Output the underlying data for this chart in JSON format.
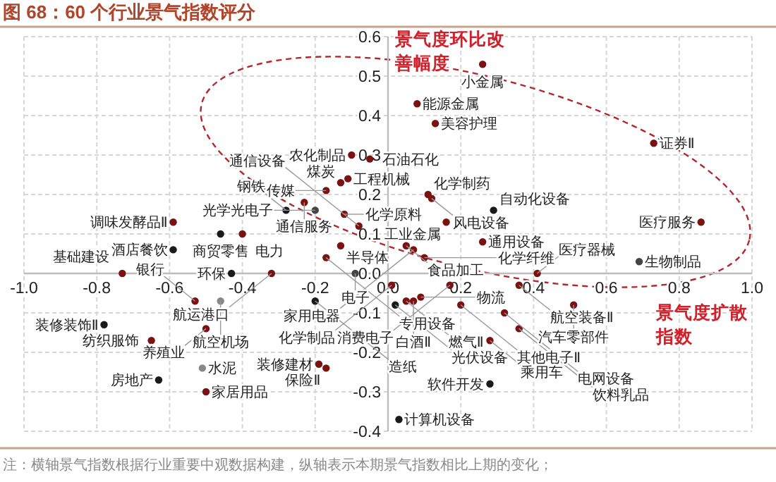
{
  "chart_data": {
    "type": "scatter",
    "title": "图 68：60 个行业景气指数评分",
    "xlabel": "景气度扩散指数",
    "ylabel": "景气度环比改善幅度",
    "xlim": [
      -1.0,
      1.0
    ],
    "ylim": [
      -0.4,
      0.6
    ],
    "xticks": [
      {
        "value": -1.0,
        "label": "-1.0"
      },
      {
        "value": -0.8,
        "label": "-0.8"
      },
      {
        "value": -0.6,
        "label": "-0.6"
      },
      {
        "value": -0.4,
        "label": "-0.4"
      },
      {
        "value": -0.2,
        "label": "-0.2"
      },
      {
        "value": 0,
        "label": "0.0"
      },
      {
        "value": 0.2,
        "label": "0.2"
      },
      {
        "value": 0.4,
        "label": "0.4"
      },
      {
        "value": 0.6,
        "label": "0.6"
      },
      {
        "value": 0.8,
        "label": "0.8"
      },
      {
        "value": 1.0,
        "label": "1.0"
      }
    ],
    "yticks": [
      {
        "value": -0.4,
        "label": "-0.4"
      },
      {
        "value": -0.3,
        "label": "-0.3"
      },
      {
        "value": -0.2,
        "label": "-0.2"
      },
      {
        "value": -0.1,
        "label": "-0.1"
      },
      {
        "value": 0,
        "label": "0.0"
      },
      {
        "value": 0.1,
        "label": "0.1"
      },
      {
        "value": 0.2,
        "label": "0.2"
      },
      {
        "value": 0.3,
        "label": "0.3"
      },
      {
        "value": 0.4,
        "label": "0.4"
      },
      {
        "value": 0.5,
        "label": "0.5"
      },
      {
        "value": 0.6,
        "label": "0.6"
      }
    ],
    "grid": true,
    "marker": "circle",
    "annotations": [
      "注：横轴景气指数根据行业重要中观数据构建，纵轴表示本期景气指数相比上期的变化；"
    ],
    "series": [
      {
        "name": "小金属",
        "color": "#7a1212",
        "x": [
          0.26
        ],
        "values": [
          0.53
        ]
      },
      {
        "name": "能源金属",
        "color": "#7a1212",
        "x": [
          0.08
        ],
        "values": [
          0.43
        ]
      },
      {
        "name": "美容护理",
        "color": "#7a1212",
        "x": [
          0.13
        ],
        "values": [
          0.38
        ]
      },
      {
        "name": "证券Ⅱ",
        "color": "#7a1212",
        "x": [
          0.73
        ],
        "values": [
          0.33
        ]
      },
      {
        "name": "农化制品",
        "color": "#7a1212",
        "x": [
          -0.1
        ],
        "values": [
          0.3
        ]
      },
      {
        "name": "石油石化",
        "color": "#7a1212",
        "x": [
          -0.05
        ],
        "values": [
          0.29
        ]
      },
      {
        "name": "工程机械",
        "color": "#7a1212",
        "x": [
          -0.11
        ],
        "values": [
          0.24
        ]
      },
      {
        "name": "煤炭",
        "color": "#7a1212",
        "x": [
          -0.13
        ],
        "values": [
          0.23
        ]
      },
      {
        "name": "传媒",
        "color": "#7a1212",
        "x": [
          -0.17
        ],
        "values": [
          0.21
        ]
      },
      {
        "name": "化学制药",
        "color": "#7a1212",
        "x": [
          0.11
        ],
        "values": [
          0.2
        ]
      },
      {
        "name": "风电设备",
        "color": "#7a1212",
        "x": [
          0.12
        ],
        "values": [
          0.19
        ]
      },
      {
        "name": "通信服务",
        "color": "#7a1212",
        "x": [
          -0.23
        ],
        "values": [
          0.18
        ]
      },
      {
        "name": "光学光电子",
        "color": "#444444",
        "x": [
          -0.2
        ],
        "values": [
          0.16
        ]
      },
      {
        "name": "钢铁",
        "color": "#1a1a1a",
        "x": [
          -0.28
        ],
        "values": [
          0.16
        ]
      },
      {
        "name": "化学原料",
        "color": "#7a1212",
        "x": [
          -0.12
        ],
        "values": [
          0.15
        ]
      },
      {
        "name": "医疗服务",
        "color": "#7a1212",
        "x": [
          0.86
        ],
        "values": [
          0.13
        ]
      },
      {
        "name": "工业金属",
        "color": "#7a1212",
        "x": [
          0.16
        ],
        "values": [
          0.13
        ]
      },
      {
        "name": "调味发酵品Ⅱ",
        "color": "#7a1212",
        "x": [
          -0.59
        ],
        "values": [
          0.13
        ]
      },
      {
        "name": "通信设备",
        "color": "#7a1212",
        "x": [
          -0.08
        ],
        "values": [
          0.12
        ]
      },
      {
        "name": "商贸零售",
        "color": "#1a1a1a",
        "x": [
          -0.46
        ],
        "values": [
          0.1
        ]
      },
      {
        "name": "电力",
        "color": "#7a1212",
        "x": [
          -0.4
        ],
        "values": [
          0.1
        ]
      },
      {
        "name": "自动化设备",
        "color": "#1a1a1a",
        "x": [
          0.29
        ],
        "values": [
          0.16
        ]
      },
      {
        "name": "通用设备",
        "color": "#7a1212",
        "x": [
          0.26
        ],
        "values": [
          0.08
        ]
      },
      {
        "name": "食品加工",
        "color": "#7a1212",
        "x": [
          0.05
        ],
        "values": [
          0.07
        ]
      },
      {
        "name": "半导体",
        "color": "#7a1212",
        "x": [
          -0.13
        ],
        "values": [
          0.07
        ]
      },
      {
        "name": "家用电器",
        "color": "#7a1212",
        "x": [
          0.07
        ],
        "values": [
          0.06
        ]
      },
      {
        "name": "化学纤维",
        "color": "#7a1212",
        "x": [
          0.1
        ],
        "values": [
          0.04
        ]
      },
      {
        "name": "酒店餐饮",
        "color": "#1a1a1a",
        "x": [
          -0.59
        ],
        "values": [
          0.06
        ]
      },
      {
        "name": "专用设备",
        "color": "#7a1212",
        "x": [
          -0.17
        ],
        "values": [
          0.04
        ]
      },
      {
        "name": "生物制品",
        "color": "#444444",
        "x": [
          0.69
        ],
        "values": [
          0.03
        ]
      },
      {
        "name": "环保",
        "color": "#1a1a1a",
        "x": [
          -0.43
        ],
        "values": [
          0.0
        ]
      },
      {
        "name": "航运港口",
        "color": "#7a1212",
        "x": [
          -0.32
        ],
        "values": [
          0.0
        ]
      },
      {
        "name": "基础建设",
        "color": "#7a1212",
        "x": [
          -0.73
        ],
        "values": [
          0.0
        ]
      },
      {
        "name": "医疗器械",
        "color": "#7a1212",
        "x": [
          0.41
        ],
        "values": [
          0.0
        ]
      },
      {
        "name": "电子",
        "color": "#444444",
        "x": [
          -0.09
        ],
        "values": [
          0.0
        ]
      },
      {
        "name": "消费电子",
        "color": "#7a1212",
        "x": [
          0.17
        ],
        "values": [
          -0.03
        ]
      },
      {
        "name": "化学制品",
        "color": "#7a1212",
        "x": [
          0.01
        ],
        "values": [
          -0.03
        ]
      },
      {
        "name": "航空装备Ⅱ",
        "color": "#7a1212",
        "x": [
          0.36
        ],
        "values": [
          -0.03
        ]
      },
      {
        "name": "物流",
        "color": "#7a1212",
        "x": [
          0.09
        ],
        "values": [
          -0.06
        ]
      },
      {
        "name": "白酒Ⅱ",
        "color": "#7a1212",
        "x": [
          0.07
        ],
        "values": [
          -0.07
        ]
      },
      {
        "name": "燃气Ⅱ",
        "color": "#7a1212",
        "x": [
          0.05
        ],
        "values": [
          -0.07
        ]
      },
      {
        "name": "银行",
        "color": "#7a1212",
        "x": [
          -0.53
        ],
        "values": [
          -0.07
        ]
      },
      {
        "name": "航空机场",
        "color": "#888888",
        "x": [
          -0.46
        ],
        "values": [
          -0.07
        ]
      },
      {
        "name": "造纸",
        "color": "#1a1a1a",
        "x": [
          -0.2
        ],
        "values": [
          -0.07
        ]
      },
      {
        "name": "光伏设备",
        "color": "#1a1a1a",
        "x": [
          0.02
        ],
        "values": [
          -0.08
        ]
      },
      {
        "name": "其他电子Ⅱ",
        "color": "#7a1212",
        "x": [
          0.2
        ],
        "values": [
          -0.08
        ]
      },
      {
        "name": "汽车零部件",
        "color": "#7a1212",
        "x": [
          0.51
        ],
        "values": [
          -0.08
        ]
      },
      {
        "name": "电网设备",
        "color": "#7a1212",
        "x": [
          0.32
        ],
        "values": [
          -0.1
        ]
      },
      {
        "name": "装修装饰Ⅱ",
        "color": "#1a1a1a",
        "x": [
          -0.78
        ],
        "values": [
          -0.13
        ]
      },
      {
        "name": "养殖业",
        "color": "#7a1212",
        "x": [
          -0.5
        ],
        "values": [
          -0.14
        ]
      },
      {
        "name": "饮料乳品",
        "color": "#7a1212",
        "x": [
          0.36
        ],
        "values": [
          -0.14
        ]
      },
      {
        "name": "纺织服饰",
        "color": "#7a1212",
        "x": [
          -0.65
        ],
        "values": [
          -0.17
        ]
      },
      {
        "name": "乘用车",
        "color": "#7a1212",
        "x": [
          0.28
        ],
        "values": [
          -0.17
        ]
      },
      {
        "name": "装修建材",
        "color": "#7a1212",
        "x": [
          -0.19
        ],
        "values": [
          -0.23
        ]
      },
      {
        "name": "保险Ⅱ",
        "color": "#7a1212",
        "x": [
          -0.17
        ],
        "values": [
          -0.24
        ]
      },
      {
        "name": "水泥",
        "color": "#888888",
        "x": [
          -0.51
        ],
        "values": [
          -0.24
        ]
      },
      {
        "name": "房地产",
        "color": "#1a1a1a",
        "x": [
          -0.63
        ],
        "values": [
          -0.27
        ]
      },
      {
        "name": "软件开发",
        "color": "#1a1a1a",
        "x": [
          0.28
        ],
        "values": [
          -0.28
        ]
      },
      {
        "name": "家居用品",
        "color": "#7a1212",
        "x": [
          -0.5
        ],
        "values": [
          -0.3
        ]
      },
      {
        "name": "计算机设备",
        "color": "#1a1a1a",
        "x": [
          0.03
        ],
        "values": [
          -0.37
        ]
      }
    ]
  }
}
